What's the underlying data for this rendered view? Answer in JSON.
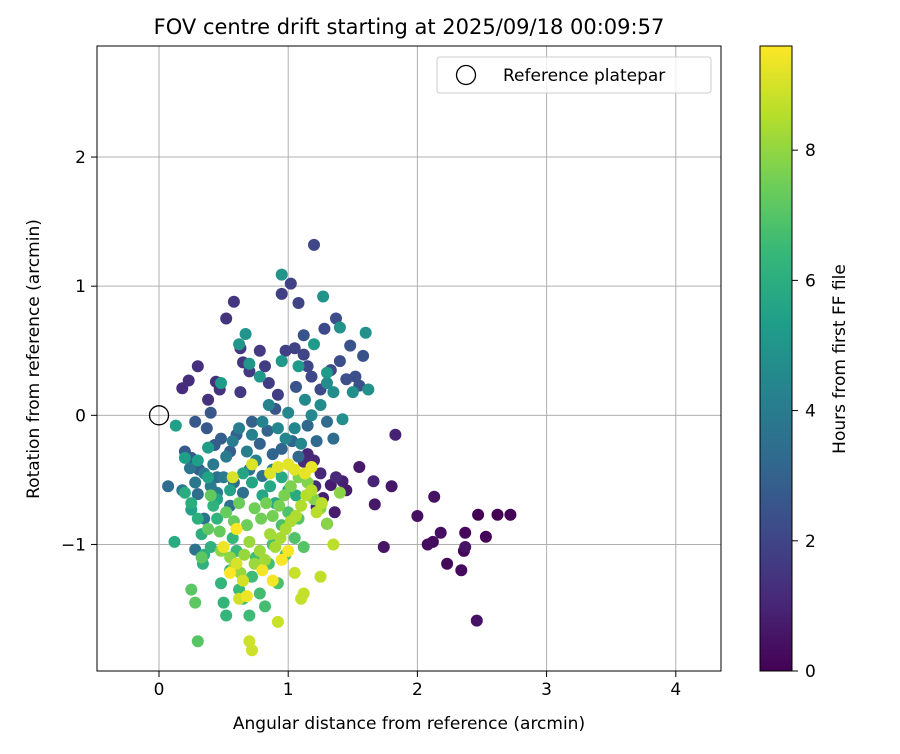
{
  "chart_data": {
    "type": "scatter",
    "title": "FOV centre drift starting at 2025/09/18 00:09:57",
    "xlabel": "Angular distance from reference (arcmin)",
    "ylabel": "Rotation from reference (arcmin)",
    "xlim": [
      -0.48,
      4.35
    ],
    "ylim": [
      -1.98,
      2.86
    ],
    "xticks": [
      0,
      1,
      2,
      3,
      4
    ],
    "xtick_labels": [
      "0",
      "1",
      "2",
      "3",
      "4"
    ],
    "yticks": [
      -1,
      0,
      1,
      2
    ],
    "ytick_labels": [
      "−1",
      "0",
      "1",
      "2"
    ],
    "grid": true,
    "legend": {
      "placement": "upper right",
      "entries": [
        "Reference platepar"
      ]
    },
    "reference_point": {
      "name": "Reference platepar",
      "x": 0,
      "y": 0,
      "marker": "open circle"
    },
    "colorbar": {
      "label": "Hours from first FF file",
      "colormap": "viridis",
      "range": [
        0,
        9.6
      ],
      "ticks": [
        0,
        2,
        4,
        6,
        8
      ],
      "tick_labels": [
        "0",
        "2",
        "4",
        "6",
        "8"
      ]
    },
    "colormap_stops": [
      "#440154",
      "#482878",
      "#3e4989",
      "#31688e",
      "#26828e",
      "#1f9e89",
      "#35b779",
      "#6ece58",
      "#b5de2b",
      "#fde725"
    ],
    "series": [
      {
        "points": [
          [
            2.47,
            -0.77
          ],
          [
            2.62,
            -0.77
          ],
          [
            2.72,
            -0.77
          ],
          [
            2.53,
            -0.94
          ],
          [
            2.36,
            -1.05
          ],
          [
            2.37,
            -0.91
          ],
          [
            2.23,
            -1.15
          ],
          [
            2.34,
            -1.2
          ],
          [
            2.12,
            -0.98
          ],
          [
            2.08,
            -1.0
          ],
          [
            2.18,
            -0.91
          ],
          [
            2.0,
            -0.78
          ],
          [
            2.13,
            -0.63
          ],
          [
            2.46,
            -1.59
          ],
          [
            2.37,
            -1.02
          ],
          [
            1.74,
            -1.02
          ],
          [
            1.8,
            -0.55
          ],
          [
            1.67,
            -0.69
          ],
          [
            1.55,
            -0.4
          ],
          [
            1.45,
            -0.58
          ],
          [
            1.33,
            -0.54
          ],
          [
            1.36,
            -0.75
          ],
          [
            1.27,
            -0.64
          ],
          [
            1.22,
            -0.71
          ],
          [
            1.42,
            -0.51
          ],
          [
            1.83,
            -0.15
          ],
          [
            1.66,
            -0.51
          ],
          [
            1.3,
            -0.84
          ],
          [
            1.15,
            -0.3
          ],
          [
            1.25,
            -0.45
          ],
          [
            1.2,
            -0.35
          ],
          [
            1.12,
            -0.36
          ],
          [
            1.37,
            -0.48
          ],
          [
            1.21,
            -0.55
          ],
          [
            0.18,
            0.21
          ],
          [
            0.23,
            0.27
          ],
          [
            0.3,
            0.38
          ],
          [
            0.38,
            0.12
          ],
          [
            0.44,
            0.26
          ],
          [
            0.47,
            0.2
          ],
          [
            0.52,
            0.75
          ],
          [
            0.58,
            0.88
          ],
          [
            0.63,
            0.52
          ],
          [
            0.65,
            0.41
          ],
          [
            0.63,
            0.18
          ],
          [
            0.7,
            0.34
          ],
          [
            0.78,
            0.5
          ],
          [
            0.82,
            0.38
          ],
          [
            0.85,
            0.25
          ],
          [
            0.92,
            0.16
          ],
          [
            0.95,
            0.94
          ],
          [
            0.98,
            0.5
          ],
          [
            1.02,
            1.02
          ],
          [
            1.05,
            0.52
          ],
          [
            1.08,
            0.87
          ],
          [
            1.12,
            0.47
          ],
          [
            1.15,
            0.38
          ],
          [
            1.2,
            1.32
          ],
          [
            1.18,
            0.3
          ],
          [
            1.25,
            0.2
          ],
          [
            1.28,
            0.67
          ],
          [
            1.33,
            0.35
          ],
          [
            1.37,
            0.75
          ],
          [
            1.4,
            0.42
          ],
          [
            1.45,
            0.28
          ],
          [
            1.52,
            0.3
          ],
          [
            1.55,
            0.23
          ],
          [
            1.58,
            0.46
          ],
          [
            1.48,
            0.54
          ],
          [
            1.12,
            0.62
          ],
          [
            1.06,
            0.22
          ],
          [
            0.9,
            0.05
          ],
          [
            0.4,
            0.02
          ],
          [
            0.37,
            -0.1
          ],
          [
            0.28,
            -0.05
          ],
          [
            0.2,
            -0.28
          ],
          [
            0.25,
            -0.33
          ],
          [
            0.31,
            -0.42
          ],
          [
            0.43,
            -0.23
          ],
          [
            0.48,
            -0.18
          ],
          [
            0.55,
            -0.28
          ],
          [
            0.6,
            -0.15
          ],
          [
            0.72,
            -0.05
          ],
          [
            0.78,
            -0.22
          ],
          [
            0.84,
            -0.12
          ],
          [
            0.88,
            -0.3
          ],
          [
            0.95,
            -0.26
          ],
          [
            1.03,
            -0.2
          ],
          [
            1.08,
            -0.32
          ],
          [
            1.15,
            -0.08
          ],
          [
            1.22,
            -0.2
          ],
          [
            1.3,
            -0.05
          ],
          [
            1.35,
            -0.18
          ],
          [
            0.07,
            -0.55
          ],
          [
            0.3,
            -0.61
          ],
          [
            0.45,
            -0.48
          ],
          [
            0.58,
            -0.52
          ],
          [
            0.65,
            -0.6
          ],
          [
            0.55,
            -0.7
          ],
          [
            0.7,
            -0.42
          ],
          [
            0.8,
            -0.47
          ],
          [
            0.35,
            -0.8
          ],
          [
            0.28,
            -1.04
          ],
          [
            0.18,
            -0.58
          ],
          [
            0.24,
            -0.41
          ],
          [
            0.28,
            -0.52
          ],
          [
            0.35,
            -0.45
          ],
          [
            0.42,
            -0.38
          ],
          [
            0.4,
            -0.55
          ],
          [
            0.45,
            -0.6
          ],
          [
            0.5,
            -0.48
          ],
          [
            0.52,
            -0.32
          ],
          [
            0.57,
            -0.2
          ],
          [
            0.62,
            -0.1
          ],
          [
            0.68,
            -0.28
          ],
          [
            0.72,
            -0.15
          ],
          [
            0.75,
            -0.35
          ],
          [
            0.8,
            -0.05
          ],
          [
            0.85,
            0.08
          ],
          [
            0.88,
            -0.42
          ],
          [
            0.92,
            -0.1
          ],
          [
            0.98,
            -0.18
          ],
          [
            1.0,
            0.02
          ],
          [
            1.05,
            -0.1
          ],
          [
            1.1,
            -0.22
          ],
          [
            1.13,
            0.12
          ],
          [
            1.18,
            0.0
          ],
          [
            1.25,
            0.08
          ],
          [
            1.3,
            0.25
          ],
          [
            1.35,
            0.18
          ],
          [
            1.42,
            -0.03
          ],
          [
            1.5,
            0.18
          ],
          [
            1.62,
            0.2
          ],
          [
            1.6,
            0.64
          ],
          [
            1.4,
            0.68
          ],
          [
            1.27,
            0.92
          ],
          [
            0.95,
            1.09
          ],
          [
            0.67,
            0.63
          ],
          [
            0.62,
            0.55
          ],
          [
            0.7,
            0.4
          ],
          [
            0.78,
            0.3
          ],
          [
            0.95,
            0.42
          ],
          [
            1.08,
            0.38
          ],
          [
            1.2,
            0.55
          ],
          [
            1.3,
            0.33
          ],
          [
            0.48,
            0.25
          ],
          [
            0.38,
            -0.25
          ],
          [
            0.3,
            -0.35
          ],
          [
            0.2,
            -0.33
          ],
          [
            0.13,
            -0.08
          ],
          [
            0.25,
            -0.73
          ],
          [
            0.38,
            -0.48
          ],
          [
            0.45,
            -0.65
          ],
          [
            0.55,
            -0.58
          ],
          [
            0.65,
            -0.45
          ],
          [
            0.72,
            -0.52
          ],
          [
            0.8,
            -0.62
          ],
          [
            0.86,
            -0.55
          ],
          [
            0.9,
            -0.68
          ],
          [
            0.95,
            -0.48
          ],
          [
            1.0,
            -0.58
          ],
          [
            1.06,
            -0.62
          ],
          [
            0.12,
            -0.98
          ],
          [
            0.2,
            -0.6
          ],
          [
            0.25,
            -0.68
          ],
          [
            0.3,
            -0.8
          ],
          [
            0.33,
            -0.92
          ],
          [
            0.35,
            -1.08
          ],
          [
            0.34,
            -1.15
          ],
          [
            0.4,
            -1.02
          ],
          [
            0.42,
            -0.7
          ],
          [
            0.45,
            -0.8
          ],
          [
            0.48,
            -1.3
          ],
          [
            0.5,
            -1.45
          ],
          [
            0.52,
            -1.55
          ],
          [
            0.55,
            -1.2
          ],
          [
            0.57,
            -0.95
          ],
          [
            0.6,
            -1.05
          ],
          [
            0.62,
            -1.35
          ],
          [
            0.65,
            -1.42
          ],
          [
            0.7,
            -1.55
          ],
          [
            0.72,
            -1.25
          ],
          [
            0.75,
            -1.1
          ],
          [
            0.78,
            -1.38
          ],
          [
            0.82,
            -1.48
          ],
          [
            0.85,
            -1.15
          ],
          [
            0.88,
            -1.0
          ],
          [
            0.92,
            -1.3
          ],
          [
            0.95,
            -0.85
          ],
          [
            0.98,
            -1.08
          ],
          [
            1.0,
            -0.75
          ],
          [
            1.05,
            -0.95
          ],
          [
            1.08,
            -0.8
          ],
          [
            1.12,
            -1.02
          ],
          [
            0.3,
            -1.75
          ],
          [
            0.25,
            -1.35
          ],
          [
            0.28,
            -1.45
          ],
          [
            0.33,
            -1.1
          ],
          [
            0.38,
            -0.88
          ],
          [
            0.4,
            -0.62
          ],
          [
            0.47,
            -0.9
          ],
          [
            0.52,
            -0.75
          ],
          [
            0.58,
            -0.82
          ],
          [
            0.62,
            -0.68
          ],
          [
            0.68,
            -0.85
          ],
          [
            0.74,
            -0.72
          ],
          [
            0.79,
            -0.8
          ],
          [
            0.83,
            -0.68
          ],
          [
            0.88,
            -0.78
          ],
          [
            0.93,
            -0.7
          ],
          [
            0.97,
            -0.62
          ],
          [
            1.02,
            -0.55
          ],
          [
            1.08,
            -0.48
          ],
          [
            1.15,
            -0.52
          ],
          [
            1.2,
            -0.65
          ],
          [
            1.25,
            -0.72
          ],
          [
            1.3,
            -0.84
          ],
          [
            1.4,
            -0.6
          ],
          [
            0.48,
            -1.05
          ],
          [
            0.55,
            -1.1
          ],
          [
            0.58,
            -1.18
          ],
          [
            0.63,
            -1.22
          ],
          [
            0.66,
            -1.08
          ],
          [
            0.7,
            -0.98
          ],
          [
            0.74,
            -1.15
          ],
          [
            0.78,
            -1.05
          ],
          [
            0.82,
            -1.12
          ],
          [
            0.86,
            -0.92
          ],
          [
            0.9,
            -1.02
          ],
          [
            0.94,
            -0.95
          ],
          [
            0.98,
            -0.88
          ],
          [
            1.02,
            -0.82
          ],
          [
            1.06,
            -0.78
          ],
          [
            1.1,
            -0.7
          ],
          [
            1.14,
            -0.62
          ],
          [
            1.18,
            -0.58
          ],
          [
            1.22,
            -0.75
          ],
          [
            1.26,
            -0.68
          ],
          [
            1.35,
            -1.0
          ],
          [
            1.25,
            -1.25
          ],
          [
            1.1,
            -1.42
          ],
          [
            1.12,
            -1.38
          ],
          [
            1.05,
            -1.22
          ],
          [
            0.92,
            -1.6
          ],
          [
            0.7,
            -1.75
          ],
          [
            0.72,
            -1.82
          ],
          [
            0.62,
            -1.42
          ],
          [
            0.65,
            -1.28
          ],
          [
            0.6,
            -1.15
          ],
          [
            0.57,
            -0.48
          ],
          [
            0.72,
            -0.38
          ],
          [
            0.86,
            -0.45
          ],
          [
            0.92,
            -0.4
          ],
          [
            1.0,
            -0.38
          ],
          [
            1.05,
            -0.42
          ],
          [
            1.13,
            -0.45
          ],
          [
            1.18,
            -0.4
          ],
          [
            0.5,
            -1.02
          ],
          [
            0.68,
            -1.4
          ],
          [
            0.8,
            -1.2
          ],
          [
            0.88,
            -1.28
          ],
          [
            0.95,
            -1.12
          ],
          [
            1.0,
            -1.05
          ],
          [
            0.55,
            -1.22
          ],
          [
            0.6,
            -0.88
          ]
        ]
      }
    ]
  }
}
